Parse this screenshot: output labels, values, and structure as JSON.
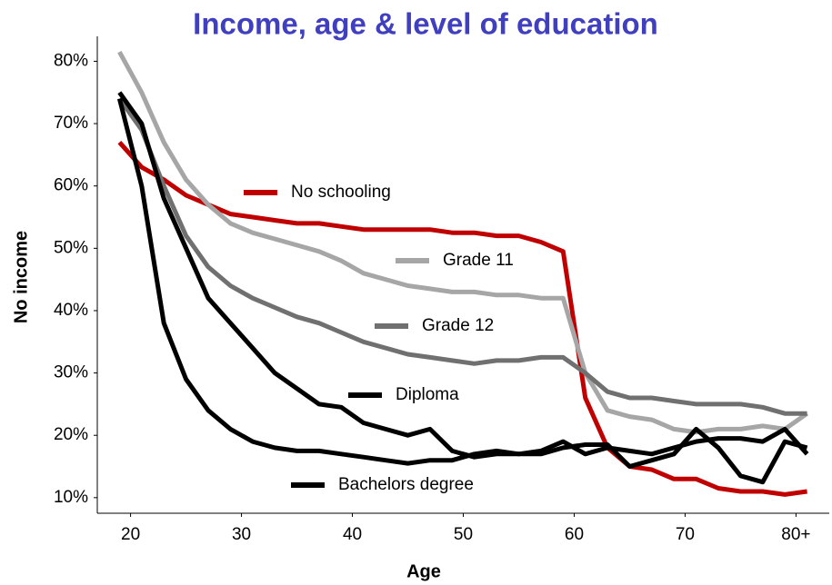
{
  "chart_data": {
    "type": "line",
    "title": "Income, age & level of education",
    "x_label": "Age",
    "y_label": "No income",
    "x": [
      19,
      21,
      23,
      25,
      27,
      29,
      31,
      33,
      35,
      37,
      39,
      41,
      43,
      45,
      47,
      49,
      51,
      53,
      55,
      57,
      59,
      61,
      63,
      65,
      67,
      69,
      71,
      73,
      75,
      77,
      79,
      81
    ],
    "series": [
      {
        "name": "No schooling",
        "color": "#c00000",
        "values": [
          67,
          63,
          61,
          58.5,
          57,
          55.5,
          55,
          54.5,
          54,
          54,
          53.5,
          53,
          53,
          53,
          53,
          52.5,
          52.5,
          52,
          52,
          51,
          49.5,
          26,
          18,
          15,
          14.5,
          13,
          13,
          11.5,
          11,
          11,
          10.5,
          11
        ]
      },
      {
        "name": "Grade 11",
        "color": "#a6a6a6",
        "values": [
          81.5,
          75,
          67,
          61,
          57,
          54,
          52.5,
          51.5,
          50.5,
          49.5,
          48,
          46,
          45,
          44,
          43.5,
          43,
          43,
          42.5,
          42.5,
          42,
          42,
          30,
          24,
          23,
          22.5,
          21,
          20.5,
          21,
          21,
          21.5,
          21,
          23.5
        ]
      },
      {
        "name": "Grade 12",
        "color": "#707070",
        "values": [
          74,
          69,
          60,
          52,
          47,
          44,
          42,
          40.5,
          39,
          38,
          36.5,
          35,
          34,
          33,
          32.5,
          32,
          31.5,
          32,
          32,
          32.5,
          32.5,
          30,
          27,
          26,
          26,
          25.5,
          25,
          25,
          25,
          24.5,
          23.5,
          23.5
        ]
      },
      {
        "name": "Diploma",
        "color": "#000000",
        "values": [
          75,
          70,
          58,
          50,
          42,
          38,
          34,
          30,
          27.5,
          25,
          24.5,
          22,
          21,
          20,
          21,
          17.5,
          16.5,
          17,
          17,
          17,
          18,
          18.5,
          18.5,
          15,
          16,
          17,
          21,
          18,
          13.5,
          12.5,
          19,
          18
        ]
      },
      {
        "name": "Bachelors degree",
        "color": "#000000",
        "values": [
          74,
          60,
          38,
          29,
          24,
          21,
          19,
          18,
          17.5,
          17.5,
          17,
          16.5,
          16,
          15.5,
          16,
          16,
          17,
          17.5,
          17,
          17.5,
          19,
          17,
          18,
          17.5,
          17,
          18,
          19,
          19.5,
          19.5,
          19,
          21,
          17
        ]
      }
    ],
    "xlim": [
      17,
      83
    ],
    "ylim": [
      7.5,
      84
    ],
    "xticks": [
      20,
      30,
      40,
      50,
      60,
      70,
      {
        "value": 80,
        "label": "80+"
      }
    ],
    "yticks": [
      {
        "value": 10,
        "label": "10%"
      },
      {
        "value": 20,
        "label": "20%"
      },
      {
        "value": 30,
        "label": "30%"
      },
      {
        "value": 40,
        "label": "40%"
      },
      {
        "value": 50,
        "label": "50%"
      },
      {
        "value": 60,
        "label": "60%"
      },
      {
        "value": 70,
        "label": "70%"
      },
      {
        "value": 80,
        "label": "80%"
      }
    ]
  }
}
